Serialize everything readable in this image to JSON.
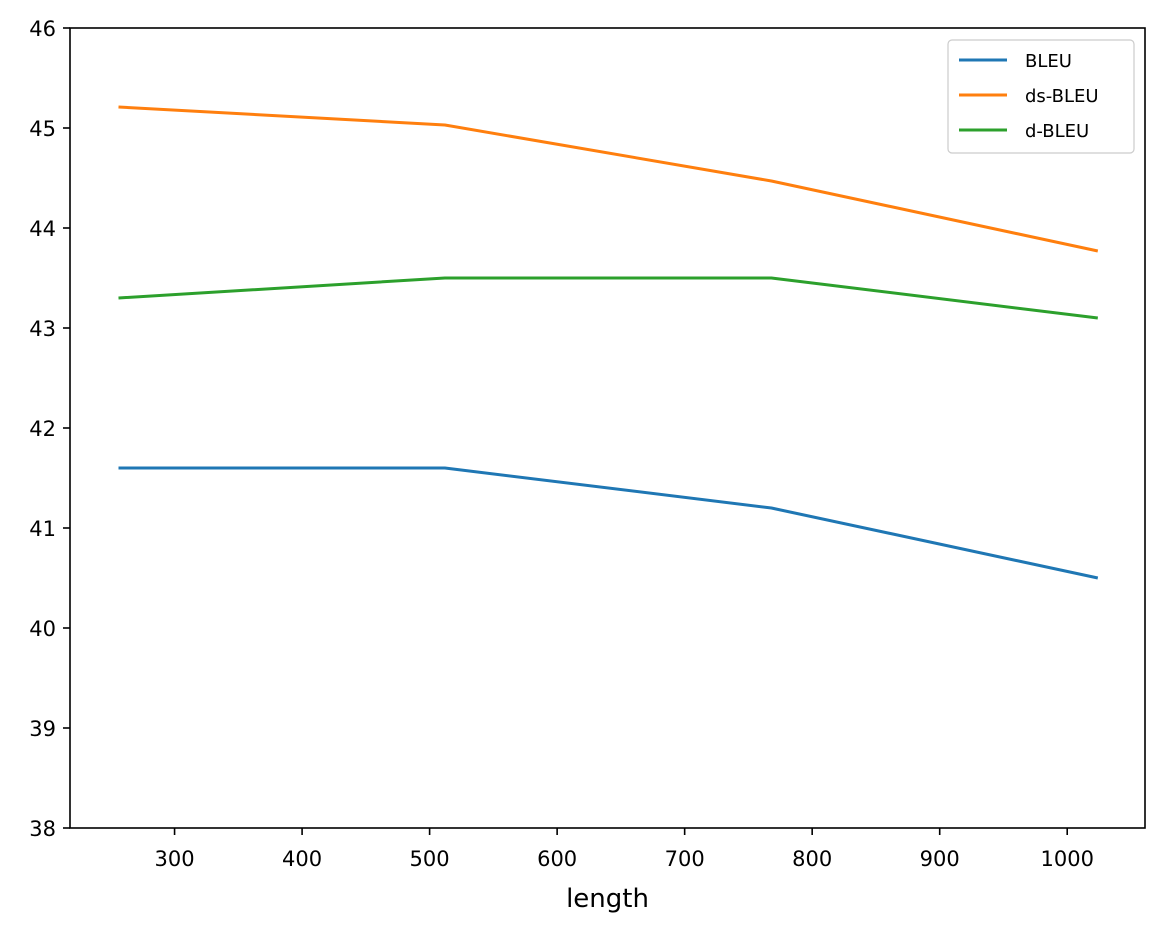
{
  "chart_data": {
    "type": "line",
    "title": "",
    "xlabel": "length",
    "ylabel": "",
    "xlim": [
      218,
      1061
    ],
    "ylim": [
      38,
      46
    ],
    "xticks": [
      300,
      400,
      500,
      600,
      700,
      800,
      900,
      1000
    ],
    "yticks": [
      38,
      39,
      40,
      41,
      42,
      43,
      44,
      45,
      46
    ],
    "grid": false,
    "legend_position": "top-right",
    "x": [
      256,
      512,
      768,
      1024
    ],
    "series": [
      {
        "name": "BLEU",
        "color": "#1f77b4",
        "values": [
          41.6,
          41.6,
          41.2,
          40.5
        ]
      },
      {
        "name": "ds-BLEU",
        "color": "#ff7f0e",
        "values": [
          45.21,
          45.03,
          44.47,
          43.77
        ]
      },
      {
        "name": "d-BLEU",
        "color": "#2ca02c",
        "values": [
          43.3,
          43.5,
          43.5,
          43.1
        ]
      }
    ]
  }
}
